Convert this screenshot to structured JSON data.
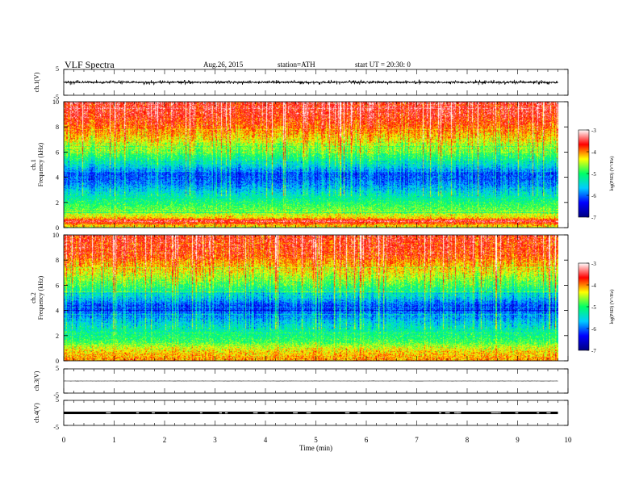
{
  "header": {
    "title": "VLF  Spectra",
    "date": "Aug.26, 2015",
    "station": "station=ATH",
    "start": "start  UT  =    20:30: 0"
  },
  "chart_data": [
    {
      "type": "line",
      "panel": "ch.1 waveform",
      "ylabel": "ch.1(V)",
      "ylim": [
        -5,
        5
      ],
      "ytick_labels": [
        "5",
        "-5"
      ],
      "xlim": [
        0,
        10
      ],
      "data_end_min": 9.8,
      "series": [
        {
          "amplitude_range": [
            -1.0,
            1.0
          ],
          "mean": 0,
          "color": "#000000"
        }
      ]
    },
    {
      "type": "heatmap",
      "panel": "ch.1 spectrogram",
      "ylabel": "ch.1\nFrequency  (kHz)",
      "ylim": [
        0,
        10
      ],
      "ytick_labels": [
        "0",
        "2",
        "4",
        "6",
        "8",
        "10"
      ],
      "xlim": [
        0,
        10
      ],
      "data_end_min": 9.8,
      "colorbar": {
        "label": "log(PSD) (V²/Hz)",
        "range": [
          -7,
          -3
        ],
        "tick_labels": [
          "-3",
          "-4",
          "-5",
          "-6",
          "-7"
        ],
        "colors": [
          "#000080",
          "#0000ff",
          "#00ccff",
          "#00ff66",
          "#ffff00",
          "#ff0000",
          "#ffffff"
        ]
      },
      "profile_khz_logpsd": [
        [
          0.2,
          -4.2
        ],
        [
          0.5,
          -3.4
        ],
        [
          0.8,
          -4.3
        ],
        [
          1.5,
          -4.8
        ],
        [
          2.5,
          -5.3
        ],
        [
          3.5,
          -5.9
        ],
        [
          4.3,
          -6.1
        ],
        [
          5.0,
          -5.4
        ],
        [
          6.0,
          -4.8
        ],
        [
          7.0,
          -4.3
        ],
        [
          8.0,
          -3.9
        ],
        [
          9.0,
          -3.6
        ],
        [
          10.0,
          -3.5
        ]
      ]
    },
    {
      "type": "heatmap",
      "panel": "ch.2 spectrogram",
      "ylabel": "ch.2\nFrequency  (kHz)",
      "ylim": [
        0,
        10
      ],
      "ytick_labels": [
        "0",
        "2",
        "4",
        "6",
        "8",
        "10"
      ],
      "xlim": [
        0,
        10
      ],
      "data_end_min": 9.8,
      "colorbar": {
        "label": "log(PSD) (V²/Hz)",
        "range": [
          -7,
          -3
        ],
        "tick_labels": [
          "-3",
          "-4",
          "-5",
          "-6",
          "-7"
        ],
        "colors": [
          "#000080",
          "#0000ff",
          "#00ccff",
          "#00ff66",
          "#ffff00",
          "#ff0000",
          "#ffffff"
        ]
      },
      "profile_khz_logpsd": [
        [
          0.2,
          -4.1
        ],
        [
          0.8,
          -4.3
        ],
        [
          1.2,
          -4.6
        ],
        [
          1.5,
          -4.9
        ],
        [
          2.5,
          -5.3
        ],
        [
          3.5,
          -5.8
        ],
        [
          4.3,
          -6.2
        ],
        [
          5.0,
          -5.6
        ],
        [
          6.0,
          -4.9
        ],
        [
          7.0,
          -4.4
        ],
        [
          8.0,
          -4.0
        ],
        [
          9.0,
          -3.7
        ],
        [
          10.0,
          -3.6
        ]
      ]
    },
    {
      "type": "line",
      "panel": "ch.3 waveform",
      "ylabel": "ch.3(V)",
      "ylim": [
        -5,
        5
      ],
      "ytick_labels": [
        "5",
        "-5"
      ],
      "xlim": [
        0,
        10
      ],
      "data_end_min": 9.8,
      "series": [
        {
          "level": 0,
          "amplitude_range": [
            -0.1,
            0.1
          ],
          "color": "#000000"
        }
      ]
    },
    {
      "type": "line",
      "panel": "ch.4 waveform",
      "ylabel": "ch.4(V)",
      "ylim": [
        -5,
        5
      ],
      "ytick_labels": [
        "5",
        "-5"
      ],
      "xlim": [
        0,
        10
      ],
      "data_end_min": 9.8,
      "series": [
        {
          "level": 0,
          "amplitude_range": [
            -0.5,
            0.5
          ],
          "color": "#000000"
        }
      ]
    }
  ],
  "x_axis": {
    "label": "Time  (min)",
    "tick_labels": [
      "0",
      "1",
      "2",
      "3",
      "4",
      "5",
      "6",
      "7",
      "8",
      "9",
      "10"
    ]
  }
}
